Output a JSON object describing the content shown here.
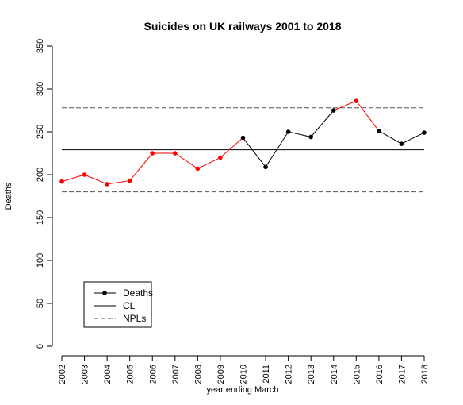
{
  "chart_data": {
    "type": "line",
    "title": "Suicides on UK railways 2001 to 2018",
    "xlabel": "year ending March",
    "ylabel": "Deaths",
    "ylim": [
      0,
      350
    ],
    "yticks": [
      0,
      50,
      100,
      150,
      200,
      250,
      300,
      350
    ],
    "categories": [
      "2002",
      "2003",
      "2004",
      "2005",
      "2006",
      "2007",
      "2008",
      "2009",
      "2010",
      "2011",
      "2012",
      "2013",
      "2014",
      "2015",
      "2016",
      "2017",
      "2018"
    ],
    "series": [
      {
        "name": "Deaths",
        "values": [
          192,
          200,
          189,
          193,
          225,
          225,
          207,
          220,
          243,
          209,
          250,
          244,
          275,
          286,
          251,
          236,
          249
        ],
        "point_colors": [
          "#ff0000",
          "#ff0000",
          "#ff0000",
          "#ff0000",
          "#ff0000",
          "#ff0000",
          "#ff0000",
          "#ff0000",
          "#000000",
          "#000000",
          "#000000",
          "#000000",
          "#000000",
          "#ff0000",
          "#000000",
          "#000000",
          "#000000"
        ]
      }
    ],
    "reference_lines": {
      "CL": 229,
      "NPLs": [
        180,
        278
      ]
    },
    "legend": {
      "placement": "bottom-left",
      "entries": [
        "Deaths",
        "CL",
        "NPLs"
      ]
    },
    "grid": false,
    "colors": {
      "special_cause": "#ff0000",
      "normal": "#000000",
      "limits": "#555555"
    }
  }
}
